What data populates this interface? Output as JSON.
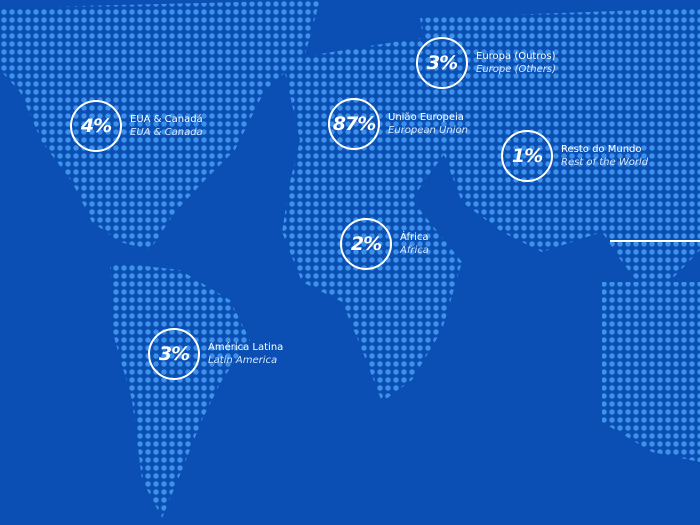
{
  "colors": {
    "background": "#0b4fb5",
    "dots": "#3d93ea",
    "ring": "#ffffff"
  },
  "regions": [
    {
      "value": "4%",
      "label_pt": "EUA & Canadá",
      "label_en": "EUA & Canada"
    },
    {
      "value": "87%",
      "label_pt": "União Europeia",
      "label_en": "European Union"
    },
    {
      "value": "3%",
      "label_pt": "Europa (Outros)",
      "label_en": "Europe (Others)"
    },
    {
      "value": "1%",
      "label_pt": "Resto do Mundo",
      "label_en": "Rest of the World"
    },
    {
      "value": "2%",
      "label_pt": "África",
      "label_en": "Africa"
    },
    {
      "value": "3%",
      "label_pt": "América Latina",
      "label_en": "Latin America"
    }
  ]
}
